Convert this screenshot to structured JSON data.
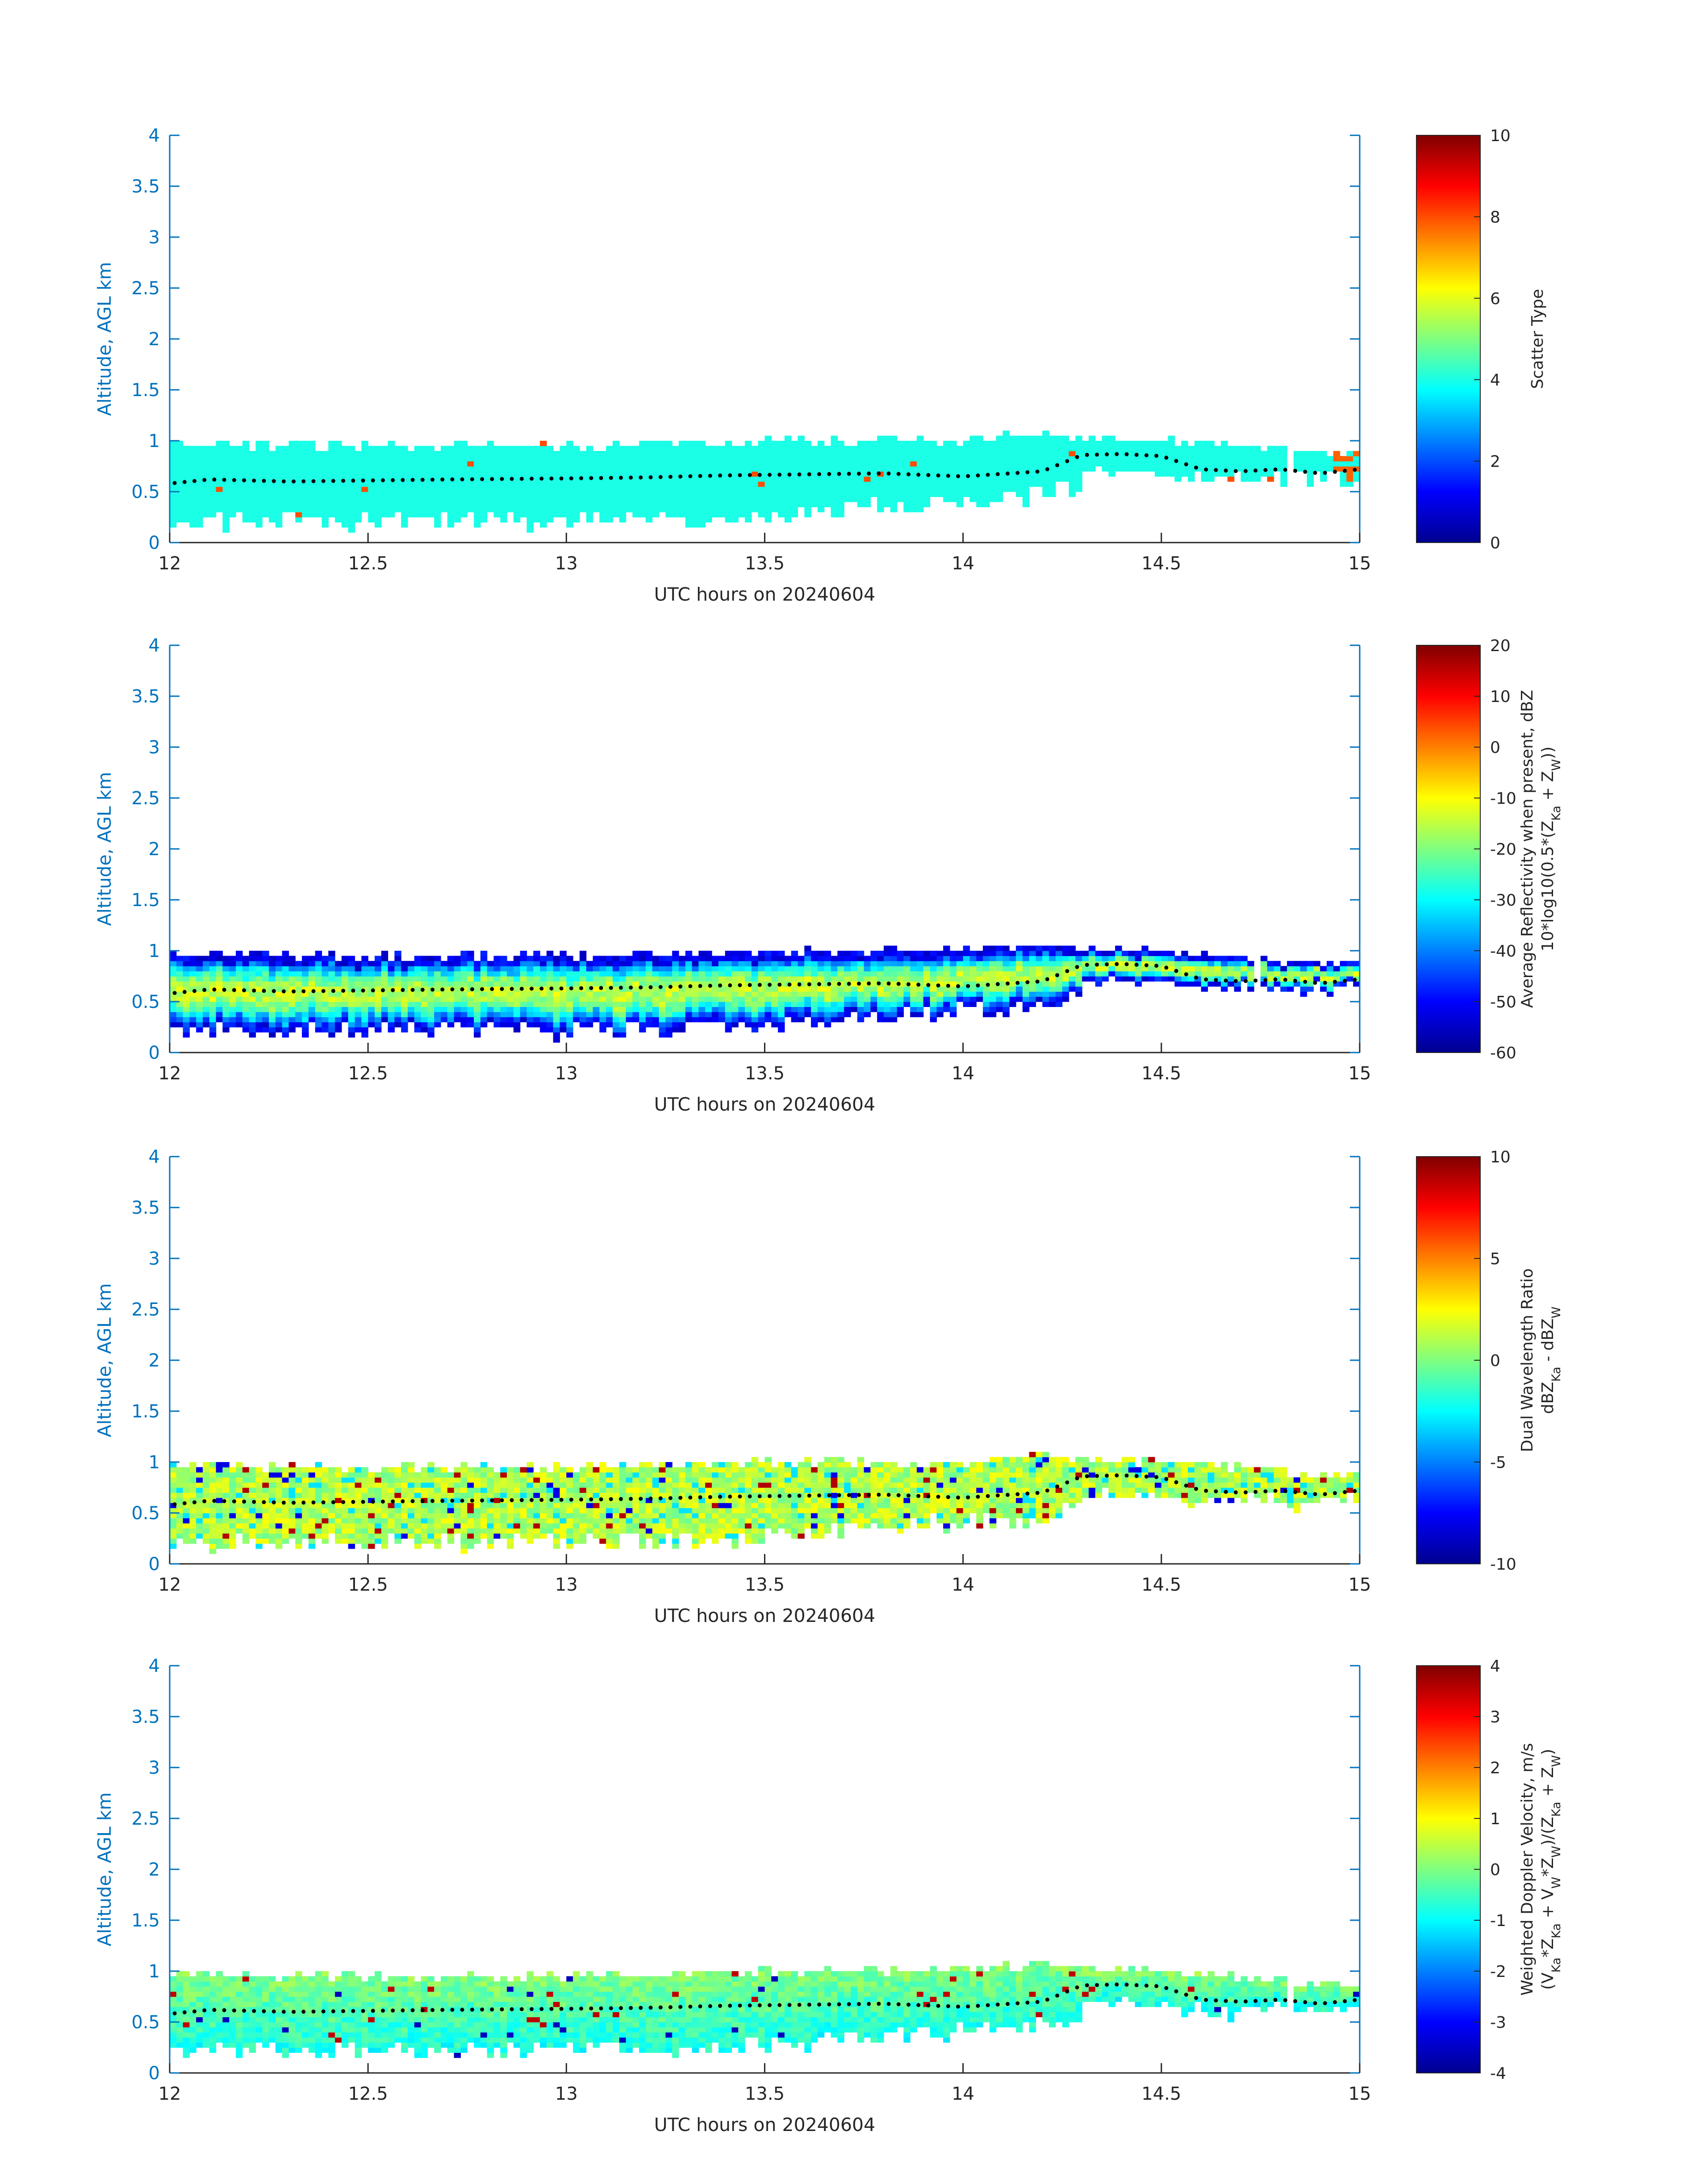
{
  "figure": {
    "date": "20240604",
    "panels": [
      {
        "id": "scatter",
        "ylabel": "Altitude, AGL km",
        "xlabel": "UTC hours on 20240604",
        "cb_label_lines": [
          "Scatter Type"
        ],
        "cb_min": 0,
        "cb_max": 10,
        "cb_ticks": [
          "0",
          "2",
          "4",
          "6",
          "8",
          "10"
        ],
        "field": "scatter"
      },
      {
        "id": "reflectivity",
        "ylabel": "Altitude, AGL km",
        "xlabel": "UTC hours on 20240604",
        "cb_label_lines": [
          "Average Reflectivity when present, dBZ",
          "10*log10(0.5*(Z_Ka + Z_W))"
        ],
        "cb_min": -60,
        "cb_max": 20,
        "cb_ticks": [
          "-60",
          "-50",
          "-40",
          "-30",
          "-20",
          "-10",
          "0",
          "10",
          "20"
        ],
        "field": "reflectivity"
      },
      {
        "id": "dwr",
        "ylabel": "Altitude, AGL km",
        "xlabel": "UTC hours on 20240604",
        "cb_label_lines": [
          "Dual Wavelength Ratio",
          "dBZ_Ka - dBZ_W"
        ],
        "cb_min": -10,
        "cb_max": 10,
        "cb_ticks": [
          "-10",
          "-5",
          "0",
          "5",
          "10"
        ],
        "field": "dwr"
      },
      {
        "id": "doppler",
        "ylabel": "Altitude, AGL km",
        "xlabel": "UTC hours on 20240604",
        "cb_label_lines": [
          "Weighted Doppler Velocity, m/s",
          "(V_Ka*Z_Ka + V_W*Z_W)/(Z_Ka + Z_W)"
        ],
        "cb_min": -4,
        "cb_max": 4,
        "cb_ticks": [
          "-4",
          "-3",
          "-2",
          "-1",
          "0",
          "1",
          "2",
          "3",
          "4"
        ],
        "field": "doppler"
      }
    ]
  },
  "chart_data": {
    "type": "heatmap",
    "xlim": [
      12,
      15
    ],
    "ylim": [
      0,
      4
    ],
    "xticks": [
      "12",
      "12.5",
      "13",
      "13.5",
      "14",
      "14.5",
      "15"
    ],
    "yticks": [
      "0",
      "0.5",
      "1",
      "1.5",
      "2",
      "2.5",
      "3",
      "3.5",
      "4"
    ],
    "colormap": "jet",
    "cloud_layer_km": {
      "hours": [
        12.0,
        12.5,
        13.0,
        13.3,
        13.5,
        13.8,
        14.0,
        14.2,
        14.3,
        14.5,
        14.7,
        14.9,
        15.0
      ],
      "top": [
        0.95,
        0.92,
        0.93,
        0.95,
        0.97,
        0.97,
        0.98,
        1.05,
        1.0,
        0.98,
        0.92,
        0.85,
        0.85
      ],
      "base": [
        0.2,
        0.2,
        0.2,
        0.22,
        0.25,
        0.35,
        0.4,
        0.45,
        0.55,
        0.6,
        0.6,
        0.6,
        0.62
      ]
    },
    "cloud_base_dots_km": {
      "hours": [
        12.0,
        12.1,
        12.3,
        12.5,
        12.7,
        13.0,
        13.2,
        13.4,
        13.6,
        13.8,
        14.0,
        14.2,
        14.3,
        14.4,
        14.5,
        14.6,
        14.7,
        14.8,
        14.9,
        15.0
      ],
      "values": [
        0.58,
        0.62,
        0.6,
        0.61,
        0.62,
        0.63,
        0.64,
        0.66,
        0.67,
        0.68,
        0.65,
        0.7,
        0.86,
        0.87,
        0.85,
        0.72,
        0.7,
        0.72,
        0.68,
        0.72
      ]
    }
  }
}
